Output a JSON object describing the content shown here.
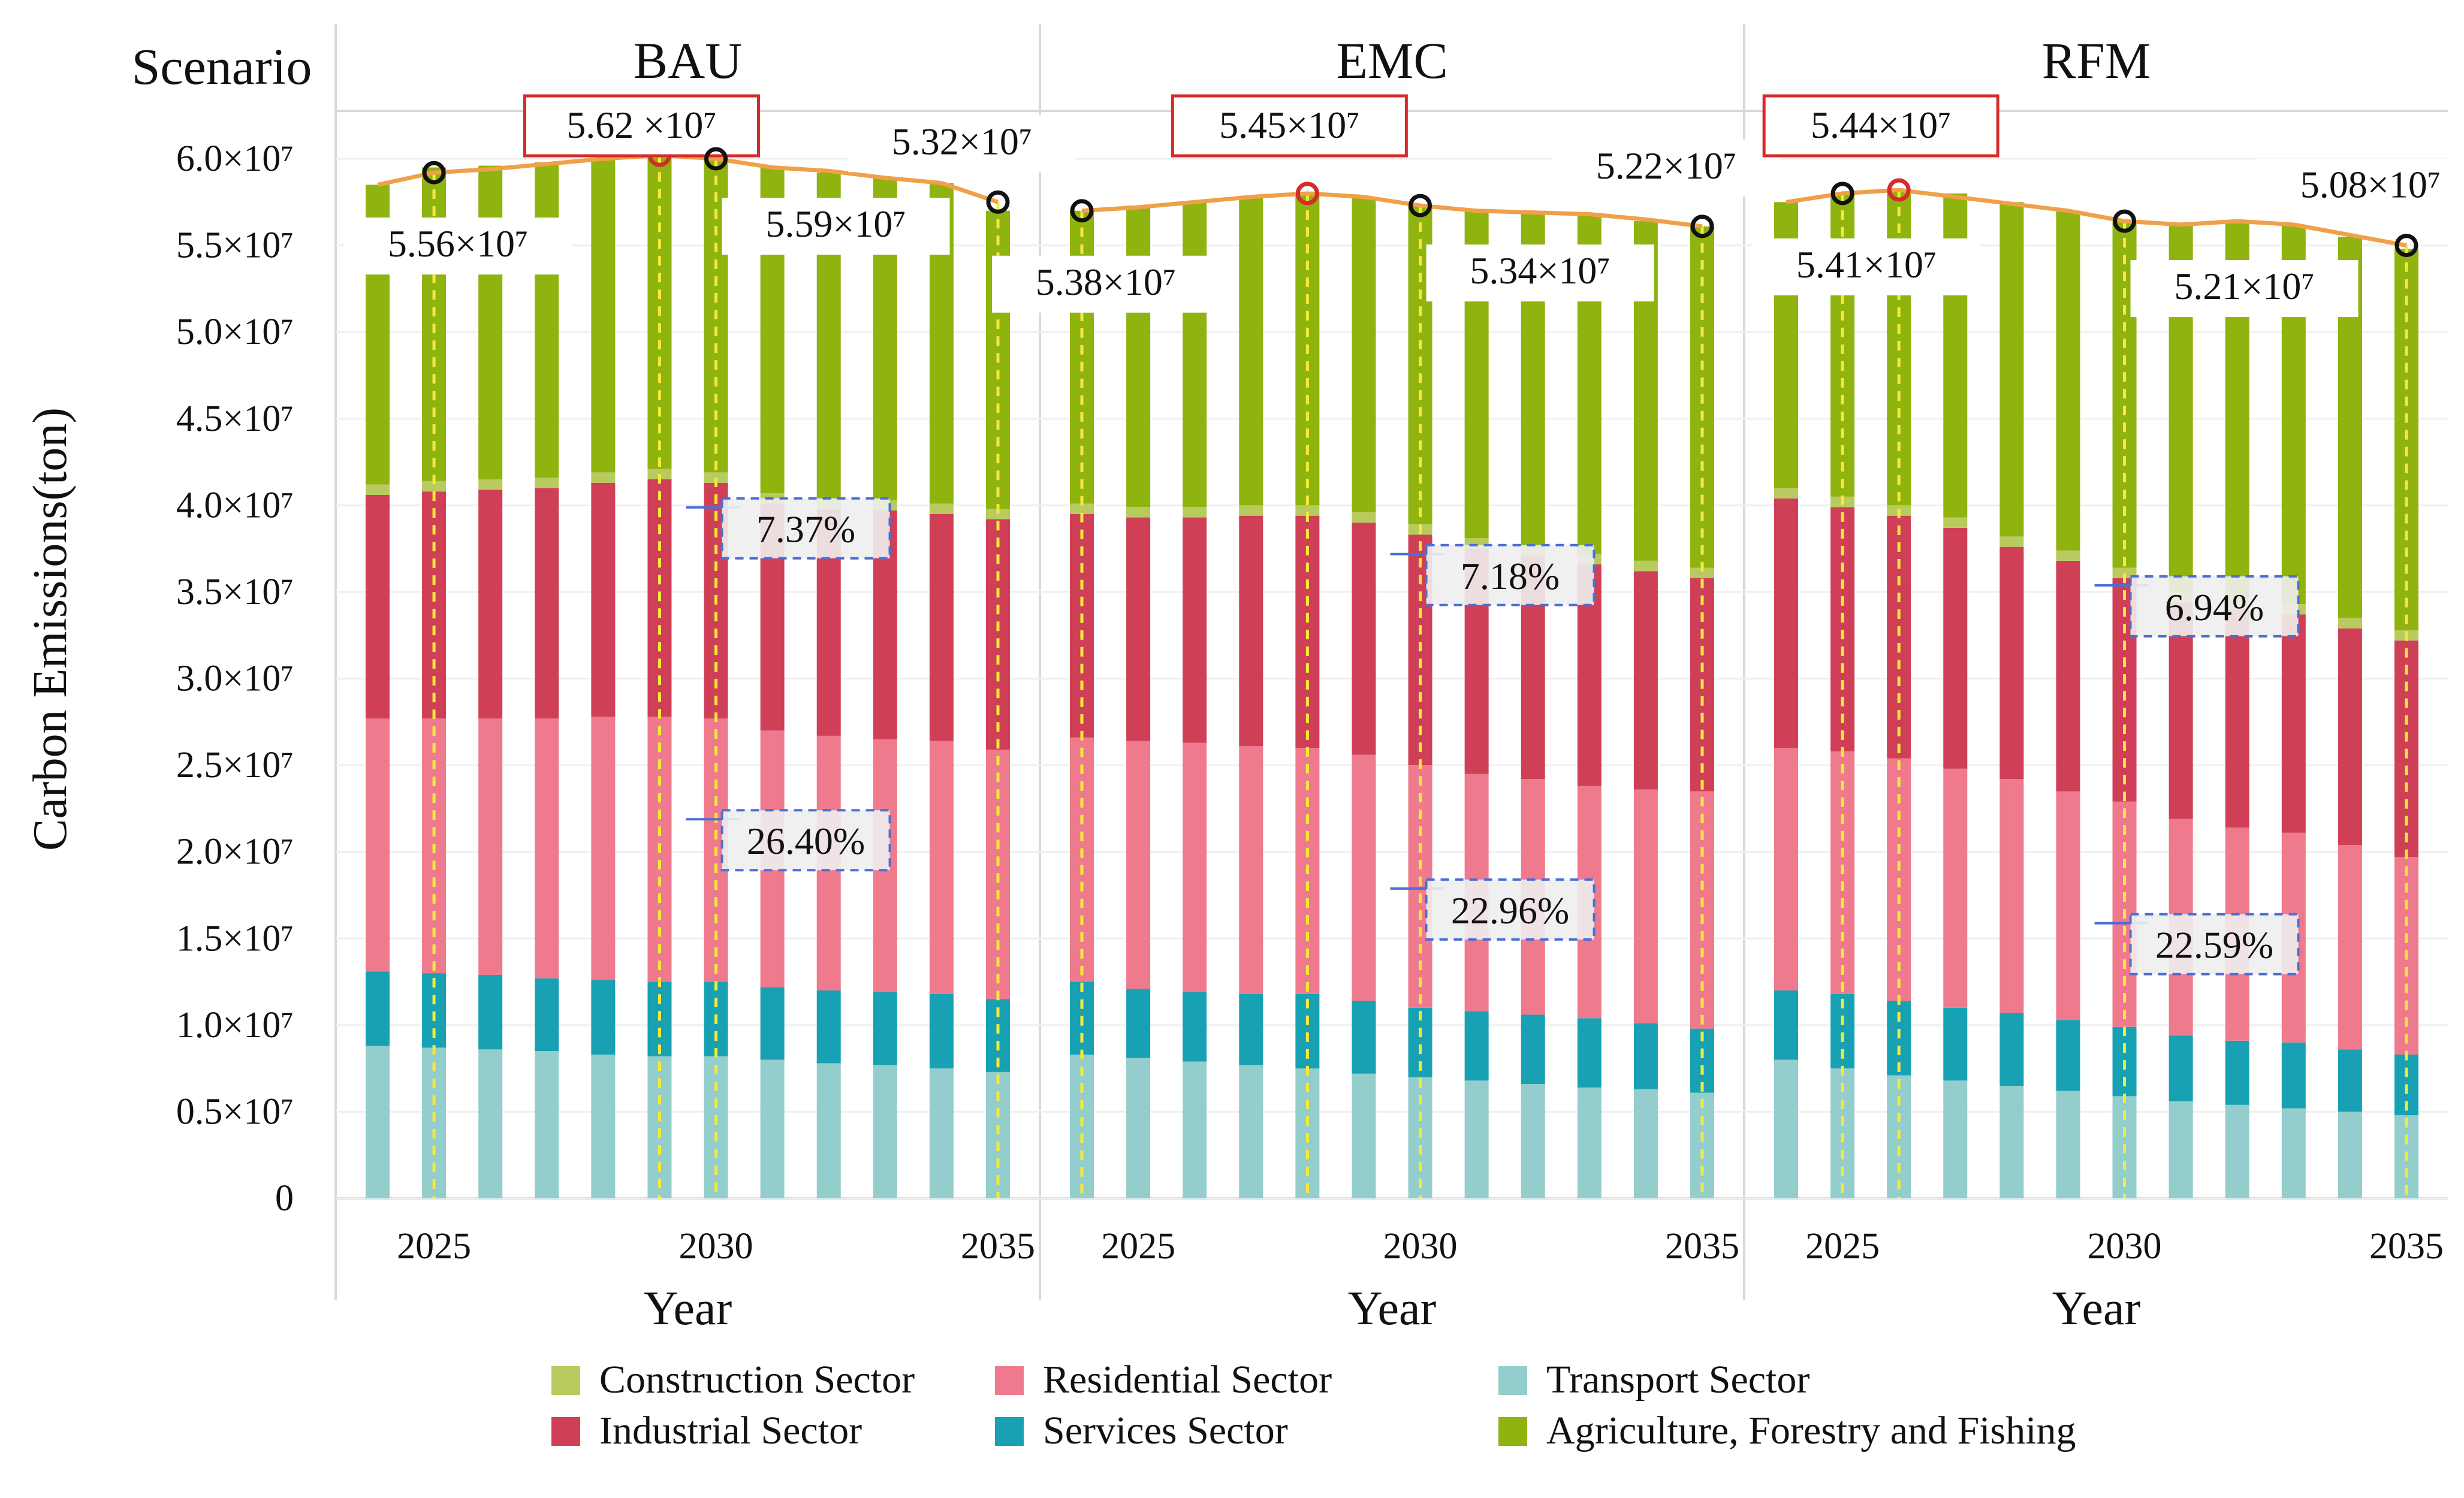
{
  "chart_data": {
    "type": "bar",
    "stacked": true,
    "facet_label": "Scenario",
    "ylabel": "Carbon Emissions(ton)",
    "xlabel": "Year",
    "ylim": [
      0,
      60000000
    ],
    "y_ticks": [
      {
        "value": 0,
        "label": "0"
      },
      {
        "value": 5000000,
        "label": "0.5×10⁷"
      },
      {
        "value": 10000000,
        "label": "1.0×10⁷"
      },
      {
        "value": 15000000,
        "label": "1.5×10⁷"
      },
      {
        "value": 20000000,
        "label": "2.0×10⁷"
      },
      {
        "value": 25000000,
        "label": "2.5×10⁷"
      },
      {
        "value": 30000000,
        "label": "3.0×10⁷"
      },
      {
        "value": 35000000,
        "label": "3.5×10⁷"
      },
      {
        "value": 40000000,
        "label": "4.0×10⁷"
      },
      {
        "value": 45000000,
        "label": "4.5×10⁷"
      },
      {
        "value": 50000000,
        "label": "5.0×10⁷"
      },
      {
        "value": 55000000,
        "label": "5.5×10⁷"
      },
      {
        "value": 60000000,
        "label": "6.0×10⁷"
      }
    ],
    "x_ticks": [
      "2025",
      "2030",
      "2035"
    ],
    "series": [
      {
        "name": "Transport Sector",
        "color": "#93cdcc"
      },
      {
        "name": "Services Sector",
        "color": "#17a1b3"
      },
      {
        "name": "Residential Sector",
        "color": "#ef7a8d"
      },
      {
        "name": "Industrial Sector",
        "color": "#cf3f56"
      },
      {
        "name": "Construction Sector",
        "color": "#b9ca5e"
      },
      {
        "name": "Agriculture, Forestry and Fishing",
        "color": "#8fb30f"
      }
    ],
    "legend": [
      {
        "label": "Construction Sector",
        "color": "#b9ca5e"
      },
      {
        "label": "Residential Sector",
        "color": "#ef7a8d"
      },
      {
        "label": "Transport Sector",
        "color": "#93cdcc"
      },
      {
        "label": "Industrial Sector",
        "color": "#cf3f56"
      },
      {
        "label": "Services Sector",
        "color": "#17a1b3"
      },
      {
        "label": "Agriculture, Forestry and Fishing",
        "color": "#8fb30f"
      }
    ],
    "panels": [
      {
        "scenario": "BAU",
        "years": [
          2024,
          2025,
          2026,
          2027,
          2028,
          2029,
          2030,
          2031,
          2032,
          2033,
          2034,
          2035
        ],
        "totals": [
          58.5,
          59.5,
          59.6,
          59.8,
          60.0,
          60.2,
          60.0,
          59.5,
          59.2,
          58.9,
          58.6,
          57.0
        ],
        "transport": [
          8.8,
          8.7,
          8.6,
          8.5,
          8.3,
          8.2,
          8.2,
          8.0,
          7.8,
          7.7,
          7.5,
          7.3
        ],
        "services": [
          4.3,
          4.3,
          4.3,
          4.2,
          4.3,
          4.3,
          4.3,
          4.2,
          4.2,
          4.2,
          4.3,
          4.2
        ],
        "residential": [
          14.6,
          14.7,
          14.8,
          15.0,
          15.2,
          15.3,
          15.2,
          14.8,
          14.7,
          14.6,
          14.6,
          14.4
        ],
        "industrial": [
          12.9,
          13.1,
          13.2,
          13.3,
          13.5,
          13.7,
          13.6,
          13.1,
          13.1,
          13.2,
          13.1,
          13.3
        ],
        "construction": [
          0.6,
          0.6,
          0.6,
          0.6,
          0.6,
          0.6,
          0.6,
          0.6,
          0.6,
          0.6,
          0.6,
          0.6
        ],
        "total_line": [
          58.5,
          59.2,
          59.4,
          59.7,
          60.0,
          60.2,
          60.0,
          59.5,
          59.3,
          58.9,
          58.6,
          57.5
        ],
        "markers": [
          {
            "year": 2025,
            "value": 55.6,
            "label": "5.56×10⁷",
            "highlight": false
          },
          {
            "year": 2029,
            "value": 56.2,
            "label": "5.62 ×10⁷",
            "highlight": true
          },
          {
            "year": 2030,
            "value": 55.9,
            "label": "5.59×10⁷",
            "highlight": false
          },
          {
            "year": 2035,
            "value": 53.2,
            "label": "5.32×10⁷",
            "highlight": false
          }
        ],
        "percent_labels": [
          {
            "label": "7.37%",
            "value": 38.5
          },
          {
            "label": "26.40%",
            "value": 20.5
          }
        ]
      },
      {
        "scenario": "EMC",
        "years": [
          2024,
          2025,
          2026,
          2027,
          2028,
          2029,
          2030,
          2031,
          2032,
          2033,
          2034,
          2035
        ],
        "totals": [
          57.0,
          57.3,
          57.5,
          57.8,
          58.0,
          57.8,
          57.3,
          57.0,
          56.9,
          56.7,
          56.4,
          56.1
        ],
        "transport": [
          8.3,
          8.1,
          7.9,
          7.7,
          7.5,
          7.2,
          7.0,
          6.8,
          6.6,
          6.4,
          6.3,
          6.1
        ],
        "services": [
          4.2,
          4.0,
          4.0,
          4.1,
          4.3,
          4.2,
          4.0,
          4.0,
          4.0,
          4.0,
          3.8,
          3.7
        ],
        "residential": [
          14.1,
          14.3,
          14.4,
          14.3,
          14.2,
          14.2,
          14.0,
          13.7,
          13.6,
          13.4,
          13.5,
          13.7
        ],
        "industrial": [
          12.9,
          12.9,
          13.0,
          13.3,
          13.4,
          13.4,
          13.3,
          13.0,
          12.9,
          12.8,
          12.6,
          12.3
        ],
        "construction": [
          0.6,
          0.6,
          0.6,
          0.6,
          0.6,
          0.6,
          0.6,
          0.6,
          0.6,
          0.6,
          0.6,
          0.6
        ],
        "total_line": [
          57.0,
          57.2,
          57.5,
          57.8,
          58.0,
          57.8,
          57.3,
          57.0,
          56.9,
          56.8,
          56.5,
          56.1
        ],
        "markers": [
          {
            "year": 2024,
            "value": 53.8,
            "label": "5.38×10⁷",
            "highlight": false
          },
          {
            "year": 2028,
            "value": 54.5,
            "label": "5.45×10⁷",
            "highlight": true
          },
          {
            "year": 2030,
            "value": 53.4,
            "label": "5.34×10⁷",
            "highlight": false
          },
          {
            "year": 2035,
            "value": 52.2,
            "label": "5.22×10⁷",
            "highlight": false
          }
        ],
        "percent_labels": [
          {
            "label": "7.18%",
            "value": 35.8
          },
          {
            "label": "22.96%",
            "value": 16.5
          }
        ]
      },
      {
        "scenario": "RFM",
        "years": [
          2024,
          2025,
          2026,
          2027,
          2028,
          2029,
          2030,
          2031,
          2032,
          2033,
          2034,
          2035
        ],
        "totals": [
          57.5,
          58.0,
          58.2,
          58.0,
          57.5,
          57.0,
          56.4,
          56.2,
          56.4,
          56.2,
          55.5,
          54.8
        ],
        "transport": [
          8.0,
          7.5,
          7.1,
          6.8,
          6.5,
          6.2,
          5.9,
          5.6,
          5.4,
          5.2,
          5.0,
          4.8
        ],
        "services": [
          4.0,
          4.3,
          4.3,
          4.2,
          4.2,
          4.1,
          4.0,
          3.8,
          3.7,
          3.8,
          3.6,
          3.5
        ],
        "residential": [
          14.0,
          14.0,
          14.0,
          13.8,
          13.5,
          13.2,
          13.0,
          12.5,
          12.3,
          12.1,
          11.8,
          11.4
        ],
        "industrial": [
          14.4,
          14.1,
          14.0,
          13.9,
          13.4,
          13.3,
          12.9,
          12.5,
          12.6,
          12.6,
          12.5,
          12.5
        ],
        "construction": [
          0.6,
          0.6,
          0.6,
          0.6,
          0.6,
          0.6,
          0.6,
          0.6,
          0.6,
          0.6,
          0.6,
          0.6
        ],
        "total_line": [
          57.5,
          58.0,
          58.2,
          57.8,
          57.4,
          57.0,
          56.4,
          56.2,
          56.4,
          56.2,
          55.6,
          55.0
        ],
        "markers": [
          {
            "year": 2025,
            "value": 54.1,
            "label": "5.41×10⁷",
            "highlight": false
          },
          {
            "year": 2026,
            "value": 54.4,
            "label": "5.44×10⁷",
            "highlight": true
          },
          {
            "year": 2030,
            "value": 52.1,
            "label": "5.21×10⁷",
            "highlight": false
          },
          {
            "year": 2035,
            "value": 50.8,
            "label": "5.08×10⁷",
            "highlight": false
          }
        ],
        "percent_labels": [
          {
            "label": "6.94%",
            "value": 34.0
          },
          {
            "label": "22.59%",
            "value": 14.5
          }
        ]
      }
    ]
  }
}
